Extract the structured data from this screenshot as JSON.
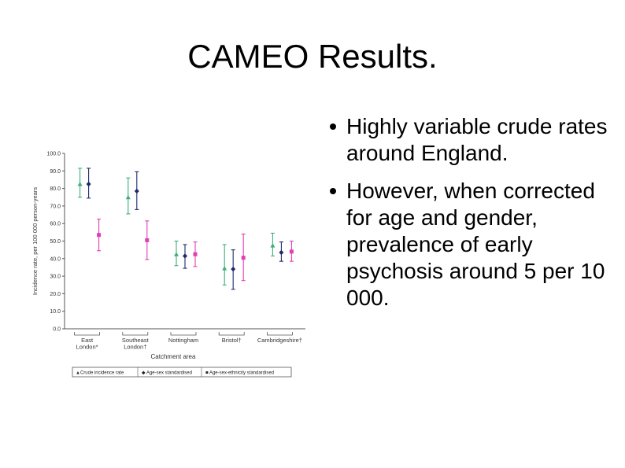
{
  "slide": {
    "title": "CAMEO Results.",
    "bullets": [
      "Highly variable crude rates around England.",
      "However, when corrected for age and gender, prevalence of early psychosis around 5 per 10 000."
    ]
  },
  "chart_data": {
    "type": "scatter",
    "title": "",
    "xlabel": "Catchment area",
    "ylabel": "Incidence rate, per 100 000 person-years",
    "ylim": [
      0,
      100
    ],
    "yticks": [
      "0.0",
      "10.0",
      "20.0",
      "30.0",
      "40.0",
      "50.0",
      "60.0",
      "70.0",
      "80.0",
      "90.0",
      "100.0"
    ],
    "categories": [
      [
        "East",
        "London*"
      ],
      [
        "Southeast",
        "London†"
      ],
      [
        "Nottingham"
      ],
      [
        "Bristol†"
      ],
      [
        "Cambridgeshire†"
      ]
    ],
    "grid": false,
    "legend_position": "bottom",
    "series": [
      {
        "name": "Crude incidence rate",
        "legend_label": "▲Crude incidence rate",
        "marker": "triangle",
        "color": "#3cb07a",
        "values": [
          82.5,
          75.0,
          42.5,
          34.5,
          47.5
        ],
        "lower": [
          75.0,
          65.5,
          36.0,
          25.0,
          41.5
        ],
        "upper": [
          91.5,
          86.0,
          50.0,
          48.0,
          54.5
        ]
      },
      {
        "name": "Age-sex standardised",
        "legend_label": "◆ Age-sex standardised",
        "marker": "diamond",
        "color": "#1f2a6b",
        "values": [
          82.5,
          78.5,
          41.5,
          34.0,
          43.5
        ],
        "lower": [
          74.5,
          68.0,
          34.5,
          22.5,
          38.5
        ],
        "upper": [
          91.5,
          89.5,
          48.0,
          45.0,
          49.5
        ]
      },
      {
        "name": "Age-sex-ethnicity standardised",
        "legend_label": "■ Age-sex-ethnicity standardised",
        "marker": "square",
        "color": "#e040b0",
        "values": [
          53.5,
          50.5,
          42.5,
          40.5,
          44.0
        ],
        "lower": [
          44.5,
          39.5,
          35.5,
          27.5,
          38.5
        ],
        "upper": [
          62.5,
          61.5,
          49.5,
          54.0,
          50.0
        ]
      }
    ]
  }
}
